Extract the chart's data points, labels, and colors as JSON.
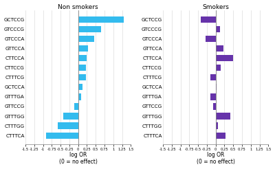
{
  "categories": [
    "GCTCCG",
    "GTCCCG",
    "GTCCCA",
    "GTTCCA",
    "CTTCCA",
    "CTTCCG",
    "CTTTCG",
    "GCTCCA",
    "GTTTGA",
    "GTTCCG",
    "GTTTGG",
    "CTTTGG",
    "CTTTCA"
  ],
  "non_smokers": [
    1.3,
    0.65,
    0.45,
    0.27,
    0.25,
    0.22,
    0.22,
    0.13,
    0.09,
    -0.12,
    -0.42,
    -0.58,
    -0.92
  ],
  "smokers": [
    -0.42,
    0.12,
    -0.28,
    0.22,
    0.5,
    0.14,
    -0.16,
    0.02,
    -0.15,
    -0.08,
    0.42,
    0.06,
    0.28
  ],
  "non_smokers_color": "#33bbee",
  "smokers_color": "#6633aa",
  "title_non_smokers": "Non smokers",
  "title_smokers": "Smokers",
  "xlabel": "log OR\n(0 = no effect)",
  "xlim": [
    -1.5,
    1.5
  ],
  "xtick_vals": [
    -1.5,
    -1.25,
    -1,
    -0.75,
    -0.5,
    -0.25,
    0,
    0.25,
    0.5,
    0.75,
    1,
    1.25,
    1.5
  ],
  "xtick_labels": [
    "-1.5",
    "-1.25",
    "-1",
    "-0.75",
    "-0.5",
    "-0.25",
    "0",
    "0.25",
    "0.5",
    "0.75",
    "1",
    "1.25",
    "1.5"
  ]
}
